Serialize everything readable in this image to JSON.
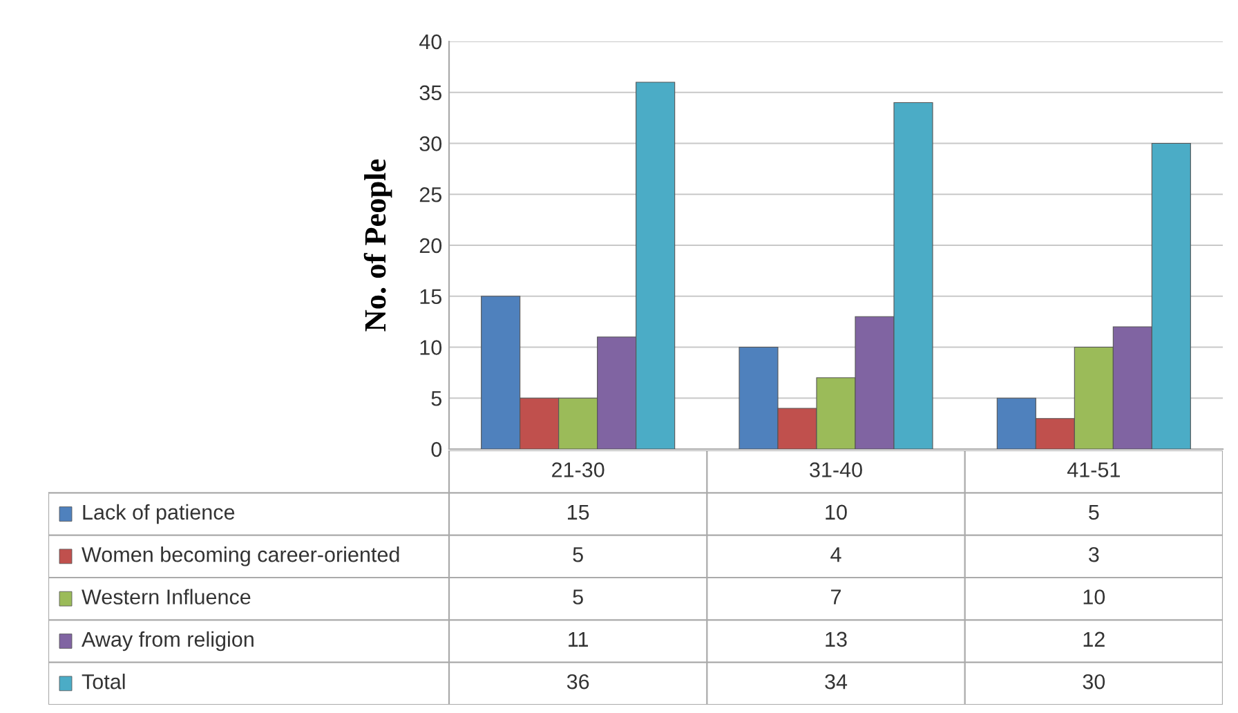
{
  "chart_data": {
    "type": "bar",
    "ylabel": "No. of People",
    "categories": [
      "21-30",
      "31-40",
      "41-51"
    ],
    "series": [
      {
        "name": "Lack of patience",
        "color": "#4f81bd",
        "values": [
          15,
          10,
          5
        ]
      },
      {
        "name": "Women becoming career-oriented",
        "color": "#c0504d",
        "values": [
          5,
          4,
          3
        ]
      },
      {
        "name": "Western Influence",
        "color": "#9bbb59",
        "values": [
          5,
          7,
          10
        ]
      },
      {
        "name": "Away from religion",
        "color": "#8064a2",
        "values": [
          11,
          13,
          12
        ]
      },
      {
        "name": "Total",
        "color": "#4bacc6",
        "values": [
          36,
          34,
          30
        ]
      }
    ],
    "ylim": [
      0,
      40
    ],
    "yticks": [
      0,
      5,
      10,
      15,
      20,
      25,
      30,
      35,
      40
    ],
    "grid": "y",
    "legend": "bottom",
    "data_labels": true
  }
}
